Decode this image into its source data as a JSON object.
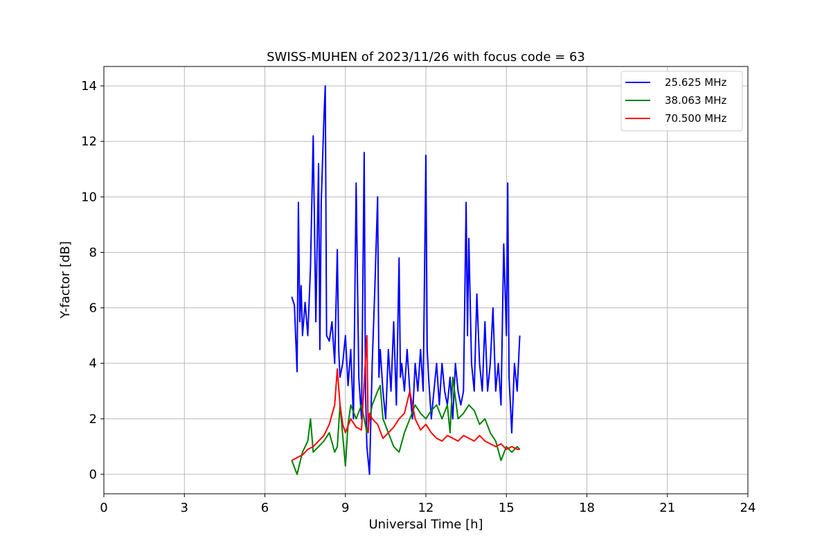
{
  "chart_data": {
    "type": "line",
    "title": "SWISS-MUHEN of 2023/11/26 with focus code = 63",
    "xlabel": "Universal Time [h]",
    "ylabel": "Y-factor [dB]",
    "xlim": [
      0,
      24
    ],
    "ylim": [
      -0.7,
      14.7
    ],
    "xticks": [
      0,
      3,
      6,
      9,
      12,
      15,
      18,
      21,
      24
    ],
    "yticks": [
      0,
      2,
      4,
      6,
      8,
      10,
      12,
      14
    ],
    "grid": true,
    "legend_position": "top-right",
    "series": [
      {
        "name": "25.625 MHz",
        "color": "#0000ff",
        "x": [
          7.0,
          7.1,
          7.2,
          7.25,
          7.3,
          7.35,
          7.4,
          7.5,
          7.6,
          7.7,
          7.8,
          7.9,
          8.0,
          8.05,
          8.1,
          8.2,
          8.25,
          8.3,
          8.4,
          8.5,
          8.6,
          8.7,
          8.75,
          8.8,
          8.9,
          9.0,
          9.1,
          9.2,
          9.3,
          9.4,
          9.5,
          9.6,
          9.7,
          9.75,
          9.8,
          9.9,
          10.0,
          10.1,
          10.2,
          10.25,
          10.3,
          10.4,
          10.5,
          10.6,
          10.7,
          10.8,
          10.9,
          11.0,
          11.05,
          11.1,
          11.2,
          11.3,
          11.4,
          11.5,
          11.6,
          11.7,
          11.8,
          11.9,
          12.0,
          12.05,
          12.1,
          12.2,
          12.3,
          12.4,
          12.5,
          12.6,
          12.7,
          12.8,
          12.9,
          13.0,
          13.1,
          13.2,
          13.3,
          13.4,
          13.5,
          13.55,
          13.6,
          13.7,
          13.8,
          13.9,
          14.0,
          14.1,
          14.2,
          14.3,
          14.4,
          14.5,
          14.6,
          14.7,
          14.8,
          14.9,
          15.0,
          15.05,
          15.1,
          15.2,
          15.3,
          15.4,
          15.5
        ],
        "y": [
          6.4,
          6.1,
          3.7,
          9.8,
          5.5,
          6.8,
          5.0,
          6.2,
          5.0,
          7.5,
          12.2,
          5.5,
          11.2,
          4.5,
          9.8,
          12.8,
          14.0,
          5.0,
          4.8,
          5.5,
          4.0,
          8.1,
          4.5,
          3.5,
          4.0,
          5.0,
          3.2,
          4.5,
          2.0,
          10.5,
          3.5,
          2.0,
          11.6,
          3.0,
          1.0,
          0.0,
          4.0,
          6.8,
          10.0,
          3.5,
          4.5,
          3.0,
          2.0,
          4.5,
          3.0,
          5.5,
          2.5,
          7.8,
          3.5,
          4.0,
          3.0,
          4.5,
          3.0,
          2.0,
          4.0,
          3.0,
          4.5,
          3.0,
          11.5,
          4.5,
          3.5,
          2.0,
          3.0,
          4.0,
          2.5,
          4.0,
          3.0,
          2.5,
          3.5,
          2.0,
          4.0,
          3.0,
          2.5,
          3.0,
          9.8,
          5.0,
          8.5,
          4.0,
          3.0,
          6.5,
          4.0,
          3.0,
          5.5,
          3.0,
          4.0,
          6.0,
          3.0,
          4.0,
          2.5,
          8.3,
          5.0,
          10.5,
          3.5,
          1.5,
          4.0,
          3.0,
          5.0
        ]
      },
      {
        "name": "38.063 MHz",
        "color": "#008000",
        "x": [
          7.0,
          7.2,
          7.4,
          7.6,
          7.7,
          7.8,
          8.0,
          8.2,
          8.4,
          8.6,
          8.7,
          8.8,
          9.0,
          9.1,
          9.2,
          9.4,
          9.6,
          9.8,
          10.0,
          10.2,
          10.3,
          10.4,
          10.6,
          10.8,
          11.0,
          11.2,
          11.4,
          11.6,
          11.8,
          12.0,
          12.2,
          12.4,
          12.6,
          12.8,
          12.9,
          13.0,
          13.2,
          13.4,
          13.6,
          13.8,
          14.0,
          14.2,
          14.4,
          14.6,
          14.8,
          15.0,
          15.2,
          15.4,
          15.5
        ],
        "y": [
          0.5,
          0.0,
          0.8,
          1.2,
          2.0,
          0.8,
          1.0,
          1.2,
          1.5,
          0.8,
          1.0,
          2.5,
          0.3,
          1.8,
          2.5,
          2.0,
          2.5,
          1.5,
          2.5,
          3.0,
          3.2,
          2.0,
          1.5,
          1.0,
          0.8,
          1.5,
          2.0,
          2.5,
          2.2,
          2.0,
          2.3,
          2.5,
          2.0,
          2.5,
          1.5,
          3.5,
          2.0,
          2.2,
          2.5,
          2.3,
          1.8,
          2.0,
          1.5,
          1.2,
          0.5,
          1.0,
          0.8,
          1.0,
          0.9
        ]
      },
      {
        "name": "70.500 MHz",
        "color": "#ff0000",
        "x": [
          7.0,
          7.2,
          7.4,
          7.6,
          7.8,
          8.0,
          8.2,
          8.4,
          8.6,
          8.7,
          8.8,
          8.9,
          9.0,
          9.2,
          9.4,
          9.6,
          9.8,
          9.85,
          9.9,
          10.0,
          10.2,
          10.4,
          10.6,
          10.8,
          11.0,
          11.2,
          11.4,
          11.5,
          11.6,
          11.8,
          12.0,
          12.2,
          12.4,
          12.6,
          12.8,
          13.0,
          13.2,
          13.4,
          13.6,
          13.8,
          14.0,
          14.2,
          14.4,
          14.6,
          14.8,
          15.0,
          15.2,
          15.4,
          15.5
        ],
        "y": [
          0.5,
          0.6,
          0.7,
          0.9,
          1.0,
          1.2,
          1.4,
          1.8,
          2.5,
          3.8,
          2.5,
          1.8,
          1.5,
          2.0,
          1.7,
          1.6,
          5.0,
          1.5,
          2.2,
          2.0,
          1.8,
          1.3,
          1.5,
          1.7,
          2.0,
          2.2,
          3.0,
          2.5,
          2.0,
          1.6,
          1.8,
          1.5,
          1.3,
          1.2,
          1.4,
          1.3,
          1.2,
          1.4,
          1.3,
          1.2,
          1.4,
          1.2,
          1.1,
          1.0,
          1.1,
          0.9,
          1.0,
          0.9,
          0.9
        ]
      }
    ]
  }
}
